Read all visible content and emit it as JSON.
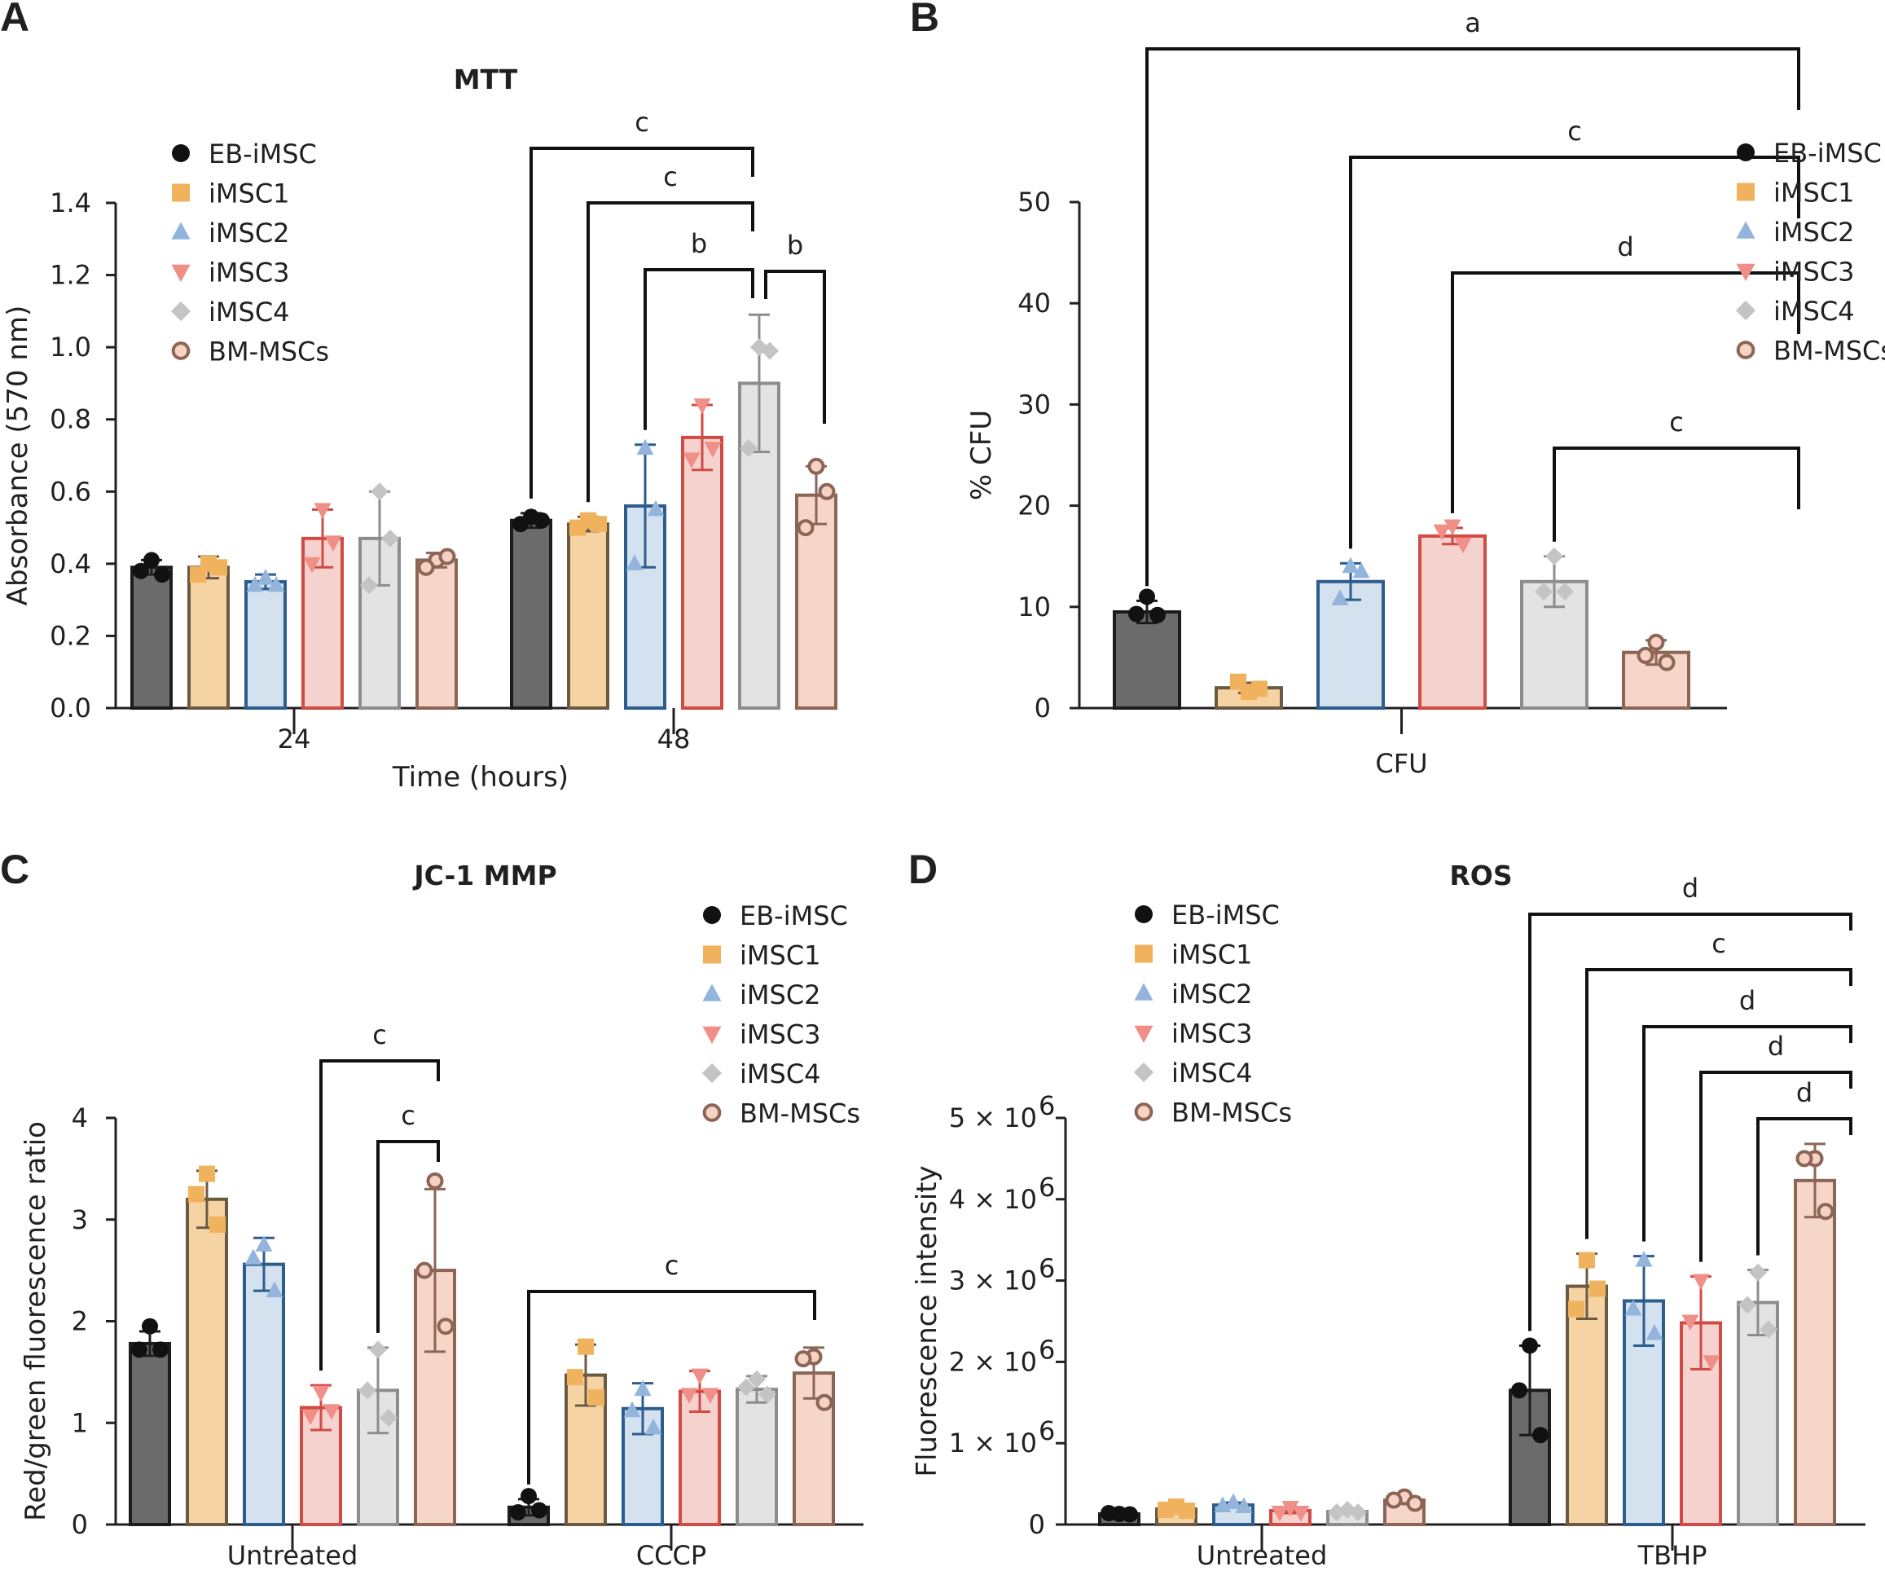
{
  "legend_colors": {
    "EB-iMSC": {
      "fill": "#6b6b6b",
      "stroke": "#1c1c1c",
      "marker": "#111111",
      "shape": "circle"
    },
    "iMSC1": {
      "fill": "#f6d3a3",
      "stroke": "#6a5a44",
      "marker": "#f0b25d",
      "shape": "square"
    },
    "iMSC2": {
      "fill": "#d4e1ef",
      "stroke": "#2c5d8c",
      "marker": "#93b5dc",
      "shape": "triangle-up"
    },
    "iMSC3": {
      "fill": "#f6d2cf",
      "stroke": "#d04b44",
      "marker": "#ef8f88",
      "shape": "triangle-down"
    },
    "iMSC4": {
      "fill": "#e3e3e3",
      "stroke": "#8d8d8d",
      "marker": "#c4c4c4",
      "shape": "diamond"
    },
    "BM-MSCs": {
      "fill": "#f6d6c9",
      "stroke": "#8c6556",
      "marker": "#f5d2c3",
      "shape": "open-circle"
    }
  },
  "chart_data": [
    {
      "panel": "A",
      "type": "bar",
      "title": "MTT",
      "xlabel": "Time (hours)",
      "ylabel": "Absorbance (570 nm)",
      "ylim": [
        0,
        1.4
      ],
      "yticks": [
        "0.0",
        "0.2",
        "0.4",
        "0.6",
        "0.8",
        "1.0",
        "1.2",
        "1.4"
      ],
      "categories": [
        "24",
        "48"
      ],
      "legend": [
        "EB-iMSC",
        "iMSC1",
        "iMSC2",
        "iMSC3",
        "iMSC4",
        "BM-MSCs"
      ],
      "series": [
        {
          "name": "EB-iMSC",
          "values": [
            0.39,
            0.52
          ],
          "errors": [
            0.02,
            0.02
          ],
          "points": [
            [
              0.41,
              0.38,
              0.37
            ],
            [
              0.53,
              0.51,
              0.52
            ]
          ]
        },
        {
          "name": "iMSC1",
          "values": [
            0.39,
            0.51
          ],
          "errors": [
            0.03,
            0.02
          ],
          "points": [
            [
              0.4,
              0.37,
              0.39
            ],
            [
              0.52,
              0.5,
              0.51
            ]
          ]
        },
        {
          "name": "iMSC2",
          "values": [
            0.35,
            0.56
          ],
          "errors": [
            0.02,
            0.17
          ],
          "points": [
            [
              0.36,
              0.34,
              0.34
            ],
            [
              0.72,
              0.4,
              0.55
            ]
          ]
        },
        {
          "name": "iMSC3",
          "values": [
            0.47,
            0.75
          ],
          "errors": [
            0.08,
            0.09
          ],
          "points": [
            [
              0.55,
              0.4,
              0.46
            ],
            [
              0.84,
              0.69,
              0.72
            ]
          ]
        },
        {
          "name": "iMSC4",
          "values": [
            0.47,
            0.9
          ],
          "errors": [
            0.13,
            0.19
          ],
          "points": [
            [
              0.6,
              0.34,
              0.47
            ],
            [
              1.0,
              0.72,
              0.99
            ]
          ]
        },
        {
          "name": "BM-MSCs",
          "values": [
            0.41,
            0.59
          ],
          "errors": [
            0.02,
            0.08
          ],
          "points": [
            [
              0.41,
              0.39,
              0.42
            ],
            [
              0.67,
              0.5,
              0.6
            ]
          ]
        }
      ],
      "significance": [
        {
          "label": "c",
          "from": [
            1,
            0
          ],
          "to": [
            1,
            4
          ]
        },
        {
          "label": "c",
          "from": [
            1,
            1
          ],
          "to": [
            1,
            4
          ]
        },
        {
          "label": "b",
          "from": [
            1,
            2
          ],
          "to": [
            1,
            4
          ]
        },
        {
          "label": "b",
          "from": [
            1,
            4
          ],
          "to": [
            1,
            5
          ]
        }
      ]
    },
    {
      "panel": "B",
      "type": "bar",
      "title": "",
      "xlabel": "",
      "ylabel": "% CFU",
      "ylim": [
        0,
        50
      ],
      "yticks": [
        "0",
        "10",
        "20",
        "30",
        "40",
        "50"
      ],
      "categories": [
        "CFU"
      ],
      "legend": [
        "EB-iMSC",
        "iMSC1",
        "iMSC2",
        "iMSC3",
        "iMSC4",
        "BM-MSCs"
      ],
      "series": [
        {
          "name": "EB-iMSC",
          "values": [
            9.5
          ],
          "errors": [
            1.1
          ],
          "points": [
            [
              11.0,
              9.3,
              9.2
            ]
          ]
        },
        {
          "name": "iMSC1",
          "values": [
            2.0
          ],
          "errors": [
            0.5
          ],
          "points": [
            [
              1.6,
              2.6,
              1.9
            ]
          ]
        },
        {
          "name": "iMSC2",
          "values": [
            12.5
          ],
          "errors": [
            1.8
          ],
          "points": [
            [
              14.0,
              10.8,
              13.5
            ]
          ]
        },
        {
          "name": "iMSC3",
          "values": [
            17.0
          ],
          "errors": [
            0.8
          ],
          "points": [
            [
              18.0,
              17.5,
              16.2
            ]
          ]
        },
        {
          "name": "iMSC4",
          "values": [
            12.5
          ],
          "errors": [
            2.5
          ],
          "points": [
            [
              15.0,
              11.5,
              11.5
            ]
          ]
        },
        {
          "name": "BM-MSCs",
          "values": [
            5.5
          ],
          "errors": [
            1.2
          ],
          "points": [
            [
              6.5,
              5.2,
              4.5
            ]
          ]
        }
      ],
      "significance": [
        {
          "label": "a",
          "from": [
            0,
            0
          ],
          "to": [
            0,
            5
          ]
        },
        {
          "label": "c",
          "from": [
            0,
            2
          ],
          "to": [
            0,
            5
          ]
        },
        {
          "label": "d",
          "from": [
            0,
            3
          ],
          "to": [
            0,
            5
          ]
        },
        {
          "label": "c",
          "from": [
            0,
            4
          ],
          "to": [
            0,
            5
          ]
        }
      ]
    },
    {
      "panel": "C",
      "type": "bar",
      "title": "JC-1 MMP",
      "xlabel": "",
      "ylabel": "Red/green fluorescence ratio",
      "ylim": [
        0,
        4
      ],
      "yticks": [
        "0",
        "1",
        "2",
        "3",
        "4"
      ],
      "categories": [
        "Untreated",
        "CCCP"
      ],
      "legend": [
        "EB-iMSC",
        "iMSC1",
        "iMSC2",
        "iMSC3",
        "iMSC4",
        "BM-MSCs"
      ],
      "series": [
        {
          "name": "EB-iMSC",
          "values": [
            1.78,
            0.17
          ],
          "errors": [
            0.12,
            0.08
          ],
          "points": [
            [
              1.95,
              1.72,
              1.72
            ],
            [
              0.28,
              0.12,
              0.14
            ]
          ]
        },
        {
          "name": "iMSC1",
          "values": [
            3.2,
            1.47
          ],
          "errors": [
            0.28,
            0.3
          ],
          "points": [
            [
              3.45,
              3.25,
              2.95
            ],
            [
              1.75,
              1.45,
              1.25
            ]
          ]
        },
        {
          "name": "iMSC2",
          "values": [
            2.56,
            1.14
          ],
          "errors": [
            0.26,
            0.25
          ],
          "points": [
            [
              2.75,
              2.62,
              2.3
            ],
            [
              1.33,
              1.12,
              0.95
            ]
          ]
        },
        {
          "name": "iMSC3",
          "values": [
            1.15,
            1.31
          ],
          "errors": [
            0.22,
            0.2
          ],
          "points": [
            [
              1.3,
              1.07,
              1.12
            ],
            [
              1.47,
              1.28,
              1.28
            ]
          ]
        },
        {
          "name": "iMSC4",
          "values": [
            1.32,
            1.33
          ],
          "errors": [
            0.42,
            0.13
          ],
          "points": [
            [
              1.72,
              1.32,
              1.05
            ],
            [
              1.43,
              1.35,
              1.28
            ]
          ]
        },
        {
          "name": "BM-MSCs",
          "values": [
            2.5,
            1.49
          ],
          "errors": [
            0.8,
            0.25
          ],
          "points": [
            [
              3.38,
              2.5,
              1.95
            ],
            [
              1.65,
              1.63,
              1.2
            ]
          ]
        }
      ],
      "significance": [
        {
          "label": "c",
          "from": [
            0,
            3
          ],
          "to": [
            0,
            5
          ]
        },
        {
          "label": "c",
          "from": [
            0,
            4
          ],
          "to": [
            0,
            5
          ]
        },
        {
          "label": "c",
          "from": [
            1,
            0
          ],
          "to": [
            1,
            5
          ]
        }
      ]
    },
    {
      "panel": "D",
      "type": "bar",
      "title": "ROS",
      "xlabel": "",
      "ylabel": "Fluorescence intensity",
      "ylim": [
        0,
        5000000
      ],
      "yticks": [
        "0",
        "1 × 10",
        "2 × 10",
        "3 × 10",
        "4 × 10",
        "5 × 10"
      ],
      "ytick_exponent": "6",
      "categories": [
        "Untreated",
        "TBHP"
      ],
      "legend": [
        "EB-iMSC",
        "iMSC1",
        "iMSC2",
        "iMSC3",
        "iMSC4",
        "BM-MSCs"
      ],
      "series": [
        {
          "name": "EB-iMSC",
          "values": [
            130000,
            1650000
          ],
          "errors": [
            15000,
            550000
          ],
          "points": [
            [
              130000,
              140000,
              125000
            ],
            [
              2200000,
              1650000,
              1100000
            ]
          ]
        },
        {
          "name": "iMSC1",
          "values": [
            190000,
            2930000
          ],
          "errors": [
            30000,
            400000
          ],
          "points": [
            [
              220000,
              180000,
              170000
            ],
            [
              3250000,
              2650000,
              2900000
            ]
          ]
        },
        {
          "name": "iMSC2",
          "values": [
            240000,
            2750000
          ],
          "errors": [
            30000,
            550000
          ],
          "points": [
            [
              270000,
              230000,
              220000
            ],
            [
              3250000,
              2650000,
              2350000
            ]
          ]
        },
        {
          "name": "iMSC3",
          "values": [
            170000,
            2480000
          ],
          "errors": [
            30000,
            570000
          ],
          "points": [
            [
              210000,
              150000,
              150000
            ],
            [
              3000000,
              2500000,
              2000000
            ]
          ]
        },
        {
          "name": "iMSC4",
          "values": [
            160000,
            2730000
          ],
          "errors": [
            15000,
            400000
          ],
          "points": [
            [
              180000,
              150000,
              150000
            ],
            [
              3100000,
              2700000,
              2400000
            ]
          ]
        },
        {
          "name": "BM-MSCs",
          "values": [
            300000,
            4230000
          ],
          "errors": [
            30000,
            450000
          ],
          "points": [
            [
              340000,
              300000,
              260000
            ],
            [
              4500000,
              4500000,
              3850000
            ]
          ]
        }
      ],
      "significance": [
        {
          "label": "d",
          "from": [
            1,
            0
          ],
          "to": [
            1,
            5
          ]
        },
        {
          "label": "c",
          "from": [
            1,
            1
          ],
          "to": [
            1,
            5
          ]
        },
        {
          "label": "d",
          "from": [
            1,
            2
          ],
          "to": [
            1,
            5
          ]
        },
        {
          "label": "d",
          "from": [
            1,
            3
          ],
          "to": [
            1,
            5
          ]
        },
        {
          "label": "d",
          "from": [
            1,
            4
          ],
          "to": [
            1,
            5
          ]
        }
      ]
    }
  ]
}
